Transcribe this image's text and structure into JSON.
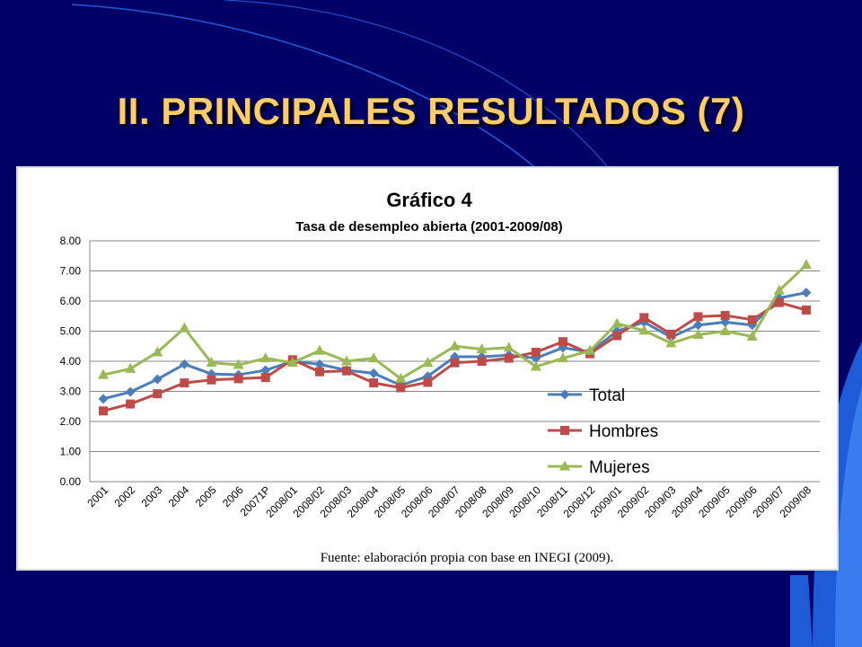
{
  "slide": {
    "title": "II. PRINCIPALES RESULTADOS (7)"
  },
  "source_note": "Fuente: elaboración propia con base en INEGI (2009).",
  "colors": {
    "background": "#000066",
    "accent_blue": "#1e5bd6",
    "title": "#ffcc66"
  },
  "chart_data": {
    "type": "line",
    "title": "Gráfico 4",
    "subtitle": "Tasa de desempleo abierta (2001-2009/08)",
    "xlabel": "",
    "ylabel": "",
    "ylim": [
      0,
      8
    ],
    "yticks": [
      "0.00",
      "1.00",
      "2.00",
      "3.00",
      "4.00",
      "5.00",
      "6.00",
      "7.00",
      "8.00"
    ],
    "grid": true,
    "legend_position": "bottom-right",
    "categories": [
      "2001",
      "2002",
      "2003",
      "2004",
      "2005",
      "2006",
      "20071P",
      "2008/01",
      "2008/02",
      "2008/03",
      "2008/04",
      "2008/05",
      "2008/06",
      "2008/07",
      "2008/08",
      "2008/09",
      "2008/10",
      "2008/11",
      "2008/12",
      "2009/01",
      "2009/02",
      "2009/03",
      "2009/04",
      "2009/05",
      "2009/06",
      "2009/07",
      "2009/08"
    ],
    "series": [
      {
        "name": "Total",
        "color": "#4a7ebb",
        "marker": "diamond",
        "values": [
          2.75,
          2.98,
          3.4,
          3.9,
          3.58,
          3.55,
          3.7,
          4.0,
          3.9,
          3.7,
          3.6,
          3.2,
          3.5,
          4.15,
          4.15,
          4.2,
          4.1,
          4.45,
          4.3,
          5.0,
          5.3,
          4.8,
          5.2,
          5.3,
          5.2,
          6.1,
          6.28
        ]
      },
      {
        "name": "Hombres",
        "color": "#be4b48",
        "marker": "square",
        "values": [
          2.35,
          2.58,
          2.92,
          3.28,
          3.38,
          3.42,
          3.46,
          4.05,
          3.65,
          3.68,
          3.28,
          3.12,
          3.3,
          3.95,
          4.0,
          4.1,
          4.3,
          4.65,
          4.25,
          4.85,
          5.45,
          4.9,
          5.48,
          5.52,
          5.38,
          5.95,
          5.7
        ]
      },
      {
        "name": "Mujeres",
        "color": "#98b954",
        "marker": "triangle",
        "values": [
          3.55,
          3.75,
          4.3,
          5.1,
          3.95,
          3.88,
          4.1,
          3.95,
          4.35,
          4.0,
          4.1,
          3.42,
          3.95,
          4.5,
          4.4,
          4.45,
          3.82,
          4.1,
          4.35,
          5.25,
          5.02,
          4.6,
          4.88,
          5.0,
          4.82,
          6.35,
          7.2
        ]
      }
    ]
  }
}
